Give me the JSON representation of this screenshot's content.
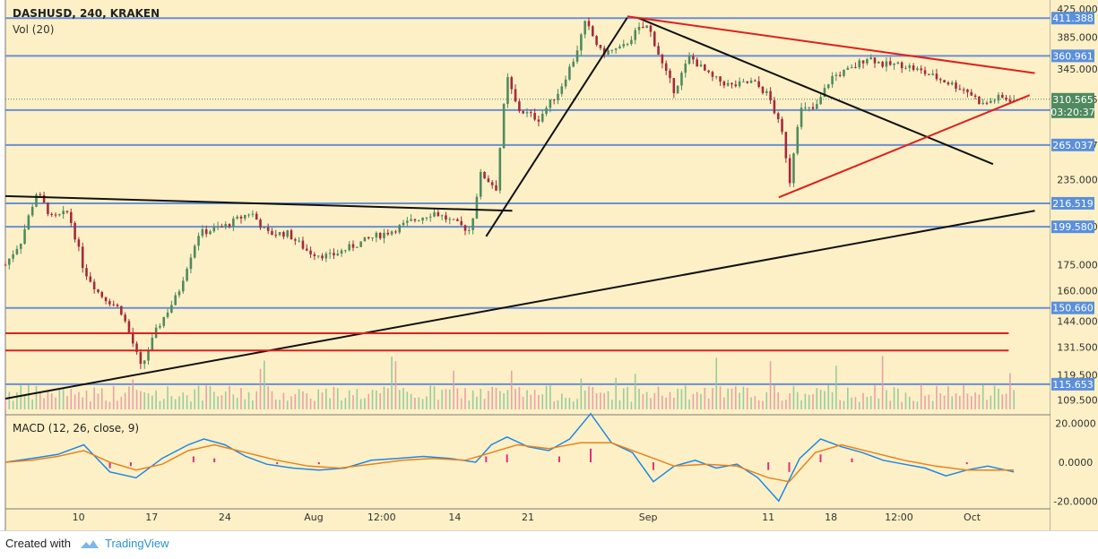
{
  "header": {
    "symbol_line": "DASHUSD, 240, KRAKEN",
    "volume_label": "Vol (20)",
    "macd_label": "MACD (12, 26, close, 9)"
  },
  "footer": {
    "created_with": "Created with",
    "brand": "TradingView"
  },
  "colors": {
    "background": "#fdf0c6",
    "up_candle": "#4f8a5f",
    "down_candle": "#a5293a",
    "horizontal_level": "#6a8fd5",
    "red_line": "#e01e1e",
    "black_line": "#111111",
    "price_badge": "#5a8fdc",
    "last_price_badge": "#4f8a5f",
    "macd_line": "#1e88e5",
    "signal_line": "#e8821e",
    "histogram": "#e0307a"
  },
  "chart_data": [
    {
      "type": "candlestick",
      "title": "DASHUSD, 240, KRAKEN",
      "y_scale": "log",
      "ylim": [
        105,
        430
      ],
      "x_tick_labels": [
        "10",
        "17",
        "24",
        "Aug",
        "12:00",
        "14",
        "21",
        "Sep",
        "11",
        "18",
        "12:00",
        "Oct"
      ],
      "y_tick_labels": [
        "425.000",
        "385.000",
        "345.000",
        "310.565",
        "265.037",
        "235.000",
        "199.580",
        "175.000",
        "160.000",
        "144.000",
        "131.500",
        "119.500",
        "109.500"
      ],
      "price_levels": [
        "411.388",
        "360.961",
        "299.132",
        "265.037",
        "216.519",
        "199.580",
        "150.660",
        "115.653"
      ],
      "last_price": "310.565",
      "countdown": "03:20:37",
      "price_path": [
        {
          "x": 0,
          "y": 175
        },
        {
          "x": 3,
          "y": 190
        },
        {
          "x": 6,
          "y": 225
        },
        {
          "x": 9,
          "y": 205
        },
        {
          "x": 12,
          "y": 210
        },
        {
          "x": 15,
          "y": 172
        },
        {
          "x": 18,
          "y": 158
        },
        {
          "x": 22,
          "y": 150
        },
        {
          "x": 26,
          "y": 122
        },
        {
          "x": 29,
          "y": 140
        },
        {
          "x": 33,
          "y": 158
        },
        {
          "x": 37,
          "y": 195
        },
        {
          "x": 42,
          "y": 200
        },
        {
          "x": 47,
          "y": 210
        },
        {
          "x": 50,
          "y": 195
        },
        {
          "x": 54,
          "y": 195
        },
        {
          "x": 58,
          "y": 183
        },
        {
          "x": 62,
          "y": 180
        },
        {
          "x": 66,
          "y": 186
        },
        {
          "x": 70,
          "y": 192
        },
        {
          "x": 74,
          "y": 197
        },
        {
          "x": 78,
          "y": 204
        },
        {
          "x": 82,
          "y": 210
        },
        {
          "x": 86,
          "y": 202
        },
        {
          "x": 89,
          "y": 197
        },
        {
          "x": 91,
          "y": 240
        },
        {
          "x": 94,
          "y": 228
        },
        {
          "x": 96,
          "y": 335
        },
        {
          "x": 98,
          "y": 300
        },
        {
          "x": 102,
          "y": 290
        },
        {
          "x": 106,
          "y": 320
        },
        {
          "x": 109,
          "y": 360
        },
        {
          "x": 111,
          "y": 405
        },
        {
          "x": 114,
          "y": 365
        },
        {
          "x": 118,
          "y": 370
        },
        {
          "x": 121,
          "y": 395
        },
        {
          "x": 123,
          "y": 400
        },
        {
          "x": 126,
          "y": 345
        },
        {
          "x": 128,
          "y": 320
        },
        {
          "x": 131,
          "y": 360
        },
        {
          "x": 135,
          "y": 335
        },
        {
          "x": 139,
          "y": 325
        },
        {
          "x": 143,
          "y": 330
        },
        {
          "x": 146,
          "y": 315
        },
        {
          "x": 149,
          "y": 270
        },
        {
          "x": 150,
          "y": 230
        },
        {
          "x": 152,
          "y": 300
        },
        {
          "x": 155,
          "y": 300
        },
        {
          "x": 158,
          "y": 335
        },
        {
          "x": 162,
          "y": 345
        },
        {
          "x": 165,
          "y": 360
        },
        {
          "x": 168,
          "y": 350
        },
        {
          "x": 172,
          "y": 350
        },
        {
          "x": 176,
          "y": 340
        },
        {
          "x": 180,
          "y": 330
        },
        {
          "x": 184,
          "y": 320
        },
        {
          "x": 187,
          "y": 305
        },
        {
          "x": 190,
          "y": 312
        },
        {
          "x": 193,
          "y": 310
        }
      ],
      "trend_lines": [
        {
          "color": "black",
          "from": {
            "x": 0,
            "y": 222
          },
          "to": {
            "x": 97,
            "y": 211
          }
        },
        {
          "color": "black",
          "from": {
            "x": 92,
            "y": 193
          },
          "to": {
            "x": 119,
            "y": 412
          }
        },
        {
          "color": "black",
          "from": {
            "x": 121,
            "y": 412
          },
          "to": {
            "x": 189,
            "y": 248
          }
        },
        {
          "color": "black",
          "from": {
            "x": 0,
            "y": 110
          },
          "to": {
            "x": 197,
            "y": 211
          }
        },
        {
          "color": "red",
          "from": {
            "x": 119,
            "y": 414
          },
          "to": {
            "x": 197,
            "y": 340
          }
        },
        {
          "color": "red",
          "from": {
            "x": 148,
            "y": 221
          },
          "to": {
            "x": 196,
            "y": 315
          }
        },
        {
          "color": "red",
          "from": {
            "x": 0,
            "y": 138
          },
          "to": {
            "x": 192,
            "y": 138
          }
        },
        {
          "color": "red",
          "from": {
            "x": 0,
            "y": 130
          },
          "to": {
            "x": 192,
            "y": 130
          }
        }
      ]
    },
    {
      "type": "line",
      "title": "MACD (12, 26, close, 9)",
      "ylim": [
        -24,
        24
      ],
      "y_tick_labels": [
        "20.0000",
        "0.0000",
        "-20.0000"
      ],
      "series": [
        {
          "values": [
            [
              0,
              0
            ],
            [
              5,
              2
            ],
            [
              10,
              4
            ],
            [
              15,
              9
            ],
            [
              20,
              -5
            ],
            [
              25,
              -8
            ],
            [
              30,
              2
            ],
            [
              35,
              9
            ],
            [
              38,
              12
            ],
            [
              42,
              9
            ],
            [
              46,
              3
            ],
            [
              50,
              -1
            ],
            [
              55,
              -3
            ],
            [
              60,
              -4
            ],
            [
              65,
              -3
            ],
            [
              70,
              1
            ],
            [
              75,
              2
            ],
            [
              80,
              3
            ],
            [
              85,
              2
            ],
            [
              90,
              0
            ],
            [
              93,
              9
            ],
            [
              96,
              13
            ],
            [
              100,
              8
            ],
            [
              104,
              6
            ],
            [
              108,
              12
            ],
            [
              112,
              25
            ],
            [
              116,
              10
            ],
            [
              120,
              5
            ],
            [
              124,
              -10
            ],
            [
              128,
              -2
            ],
            [
              132,
              1
            ],
            [
              136,
              -3
            ],
            [
              140,
              -1
            ],
            [
              144,
              -8
            ],
            [
              148,
              -20
            ],
            [
              152,
              2
            ],
            [
              156,
              12
            ],
            [
              160,
              8
            ],
            [
              164,
              5
            ],
            [
              168,
              1
            ],
            [
              172,
              -1
            ],
            [
              176,
              -3
            ],
            [
              180,
              -7
            ],
            [
              184,
              -4
            ],
            [
              188,
              -2
            ],
            [
              193,
              -5
            ]
          ]
        },
        {
          "values": [
            [
              0,
              0
            ],
            [
              5,
              1
            ],
            [
              10,
              3
            ],
            [
              15,
              6
            ],
            [
              20,
              0
            ],
            [
              25,
              -4
            ],
            [
              30,
              -1
            ],
            [
              35,
              6
            ],
            [
              40,
              9
            ],
            [
              46,
              5
            ],
            [
              52,
              1
            ],
            [
              58,
              -2
            ],
            [
              64,
              -3
            ],
            [
              70,
              -1
            ],
            [
              76,
              1
            ],
            [
              82,
              2
            ],
            [
              88,
              1
            ],
            [
              93,
              5
            ],
            [
              98,
              9
            ],
            [
              104,
              7
            ],
            [
              110,
              10
            ],
            [
              116,
              10
            ],
            [
              122,
              4
            ],
            [
              128,
              -2
            ],
            [
              134,
              -1
            ],
            [
              140,
              -2
            ],
            [
              146,
              -8
            ],
            [
              150,
              -10
            ],
            [
              155,
              5
            ],
            [
              160,
              9
            ],
            [
              166,
              5
            ],
            [
              172,
              1
            ],
            [
              178,
              -2
            ],
            [
              184,
              -4
            ],
            [
              190,
              -4
            ],
            [
              193,
              -4
            ]
          ]
        }
      ],
      "histogram": [
        [
          20,
          -3
        ],
        [
          24,
          -2
        ],
        [
          36,
          3
        ],
        [
          40,
          2
        ],
        [
          52,
          -1
        ],
        [
          60,
          -1
        ],
        [
          92,
          3
        ],
        [
          96,
          4
        ],
        [
          106,
          3
        ],
        [
          112,
          7
        ],
        [
          124,
          -4
        ],
        [
          146,
          -4
        ],
        [
          150,
          -5
        ],
        [
          156,
          4
        ],
        [
          162,
          2
        ],
        [
          184,
          -1
        ]
      ]
    }
  ]
}
